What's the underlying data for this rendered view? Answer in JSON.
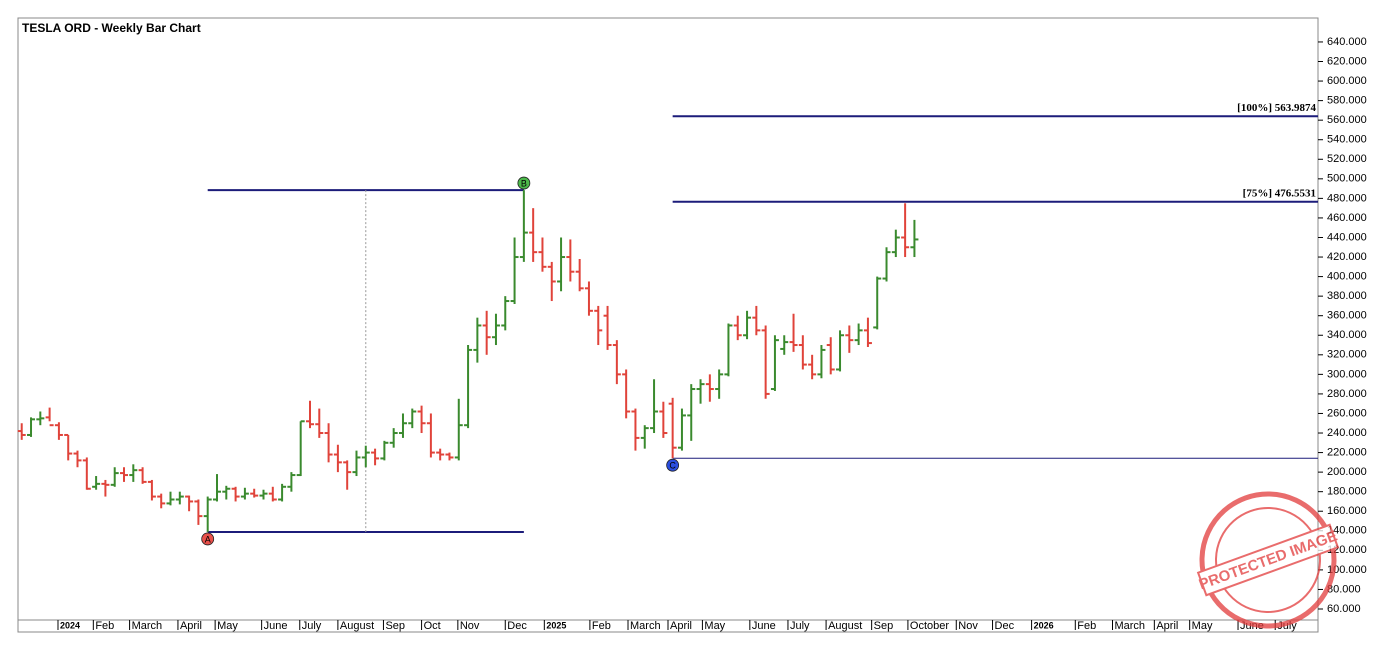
{
  "chart_data": {
    "type": "ohlc",
    "title": "TESLA ORD - Weekly Bar Chart",
    "open": [
      242,
      238,
      254,
      256,
      248,
      238,
      219,
      212,
      185,
      188,
      187,
      199,
      197,
      202,
      190,
      175,
      168,
      172,
      175,
      170,
      155,
      172,
      180,
      183,
      175,
      178,
      176,
      178,
      172,
      185,
      197,
      252,
      249,
      240,
      218,
      210,
      200,
      215,
      220,
      214,
      230,
      240,
      250,
      262,
      250,
      220,
      218,
      215,
      248,
      325,
      350,
      338,
      350,
      375,
      420,
      445,
      425,
      410,
      395,
      420,
      405,
      388,
      365,
      360,
      330,
      300,
      262,
      235,
      245,
      262,
      270,
      225,
      258,
      285,
      290,
      285,
      300,
      350,
      340,
      358,
      345,
      285,
      326,
      333,
      330,
      310,
      300,
      330,
      305,
      340,
      335,
      345,
      348,
      398,
      425,
      440,
      430
    ],
    "high": [
      250,
      256,
      262,
      266,
      251,
      238,
      222,
      215,
      196,
      192,
      205,
      205,
      208,
      205,
      192,
      178,
      180,
      180,
      176,
      172,
      175,
      198,
      186,
      185,
      184,
      183,
      182,
      185,
      188,
      200,
      252,
      273,
      265,
      250,
      228,
      212,
      222,
      227,
      224,
      232,
      245,
      260,
      265,
      268,
      260,
      224,
      220,
      275,
      330,
      358,
      365,
      362,
      380,
      440,
      488.5,
      470,
      440,
      415,
      440,
      438,
      418,
      395,
      370,
      370,
      335,
      305,
      265,
      248,
      295,
      272,
      276,
      265,
      290,
      295,
      300,
      305,
      352,
      360,
      365,
      370,
      350,
      340,
      340,
      362,
      340,
      320,
      330,
      338,
      345,
      350,
      352,
      358,
      400,
      430,
      448,
      475,
      458
    ],
    "low": [
      233,
      236,
      248,
      252,
      233,
      212,
      205,
      182,
      182,
      175,
      185,
      190,
      190,
      188,
      171,
      163,
      166,
      167,
      160,
      146,
      138.8,
      170,
      172,
      170,
      172,
      174,
      172,
      170,
      170,
      180,
      196,
      245,
      235,
      210,
      200,
      182,
      196,
      205,
      207,
      212,
      225,
      235,
      245,
      240,
      215,
      212,
      212,
      212,
      245,
      312,
      320,
      330,
      345,
      372,
      415,
      415,
      405,
      375,
      385,
      395,
      385,
      360,
      330,
      325,
      290,
      255,
      222,
      224,
      240,
      235,
      214.25,
      222,
      232,
      270,
      272,
      275,
      298,
      335,
      336,
      340,
      275,
      283,
      320,
      323,
      305,
      295,
      296,
      300,
      303,
      322,
      330,
      328,
      346,
      395,
      420,
      420,
      420
    ],
    "close": [
      238,
      254,
      255,
      248,
      238,
      219,
      212,
      183,
      188,
      187,
      199,
      197,
      202,
      190,
      175,
      168,
      172,
      175,
      170,
      155,
      172,
      180,
      183,
      175,
      178,
      176,
      178,
      172,
      185,
      197,
      252,
      249,
      240,
      218,
      210,
      200,
      215,
      220,
      214,
      230,
      240,
      250,
      262,
      250,
      220,
      218,
      215,
      248,
      325,
      350,
      338,
      350,
      375,
      420,
      445,
      425,
      410,
      395,
      420,
      405,
      388,
      365,
      345,
      330,
      300,
      262,
      235,
      245,
      262,
      240,
      225,
      258,
      285,
      290,
      285,
      300,
      350,
      340,
      358,
      345,
      280,
      335,
      333,
      330,
      310,
      300,
      325,
      305,
      340,
      335,
      345,
      332,
      398,
      425,
      440,
      430,
      438
    ],
    "up_color": "#3a8a2e",
    "down_color": "#e0433a",
    "flat_color": "#000000",
    "line_color": "#1c1c7a",
    "xlim": [
      -0.4,
      139.4
    ],
    "xticks": [
      {
        "value": 3.9,
        "label": "2024"
      },
      {
        "value": 7.7,
        "label": "Feb"
      },
      {
        "value": 11.6,
        "label": "March"
      },
      {
        "value": 16.8,
        "label": "April"
      },
      {
        "value": 20.8,
        "label": "May"
      },
      {
        "value": 25.8,
        "label": "June"
      },
      {
        "value": 29.9,
        "label": "July"
      },
      {
        "value": 34,
        "label": "August"
      },
      {
        "value": 38.9,
        "label": "Sep"
      },
      {
        "value": 43,
        "label": "Oct"
      },
      {
        "value": 46.9,
        "label": "Nov"
      },
      {
        "value": 52,
        "label": "Dec"
      },
      {
        "value": 56.2,
        "label": "2025"
      },
      {
        "value": 61.1,
        "label": "Feb"
      },
      {
        "value": 65.2,
        "label": "March"
      },
      {
        "value": 69.5,
        "label": "April"
      },
      {
        "value": 73.2,
        "label": "May"
      },
      {
        "value": 78.3,
        "label": "June"
      },
      {
        "value": 82.4,
        "label": "July"
      },
      {
        "value": 86.5,
        "label": "August"
      },
      {
        "value": 91.4,
        "label": "Sep"
      },
      {
        "value": 95.3,
        "label": "October"
      },
      {
        "value": 100.5,
        "label": "Nov"
      },
      {
        "value": 104.4,
        "label": "Dec"
      },
      {
        "value": 108.6,
        "label": "2026"
      },
      {
        "value": 113.3,
        "label": "Feb"
      },
      {
        "value": 117.3,
        "label": "March"
      },
      {
        "value": 121.8,
        "label": "April"
      },
      {
        "value": 125.6,
        "label": "May"
      },
      {
        "value": 130.8,
        "label": "June"
      },
      {
        "value": 134.8,
        "label": "July"
      }
    ],
    "ylim": [
      46.7,
      664.5
    ],
    "yticks": [
      {
        "value": 640,
        "label": "640.000"
      },
      {
        "value": 620,
        "label": "620.000"
      },
      {
        "value": 600,
        "label": "600.000"
      },
      {
        "value": 580,
        "label": "580.000"
      },
      {
        "value": 560,
        "label": "560.000"
      },
      {
        "value": 540,
        "label": "540.000"
      },
      {
        "value": 520,
        "label": "520.000"
      },
      {
        "value": 500,
        "label": "500.000"
      },
      {
        "value": 480,
        "label": "480.000"
      },
      {
        "value": 460,
        "label": "460.000"
      },
      {
        "value": 440,
        "label": "440.000"
      },
      {
        "value": 420,
        "label": "420.000"
      },
      {
        "value": 400,
        "label": "400.000"
      },
      {
        "value": 380,
        "label": "380.000"
      },
      {
        "value": 360,
        "label": "360.000"
      },
      {
        "value": 340,
        "label": "340.000"
      },
      {
        "value": 320,
        "label": "320.000"
      },
      {
        "value": 300,
        "label": "300.000"
      },
      {
        "value": 280,
        "label": "280.000"
      },
      {
        "value": 260,
        "label": "260.000"
      },
      {
        "value": 240,
        "label": "240.000"
      },
      {
        "value": 220,
        "label": "220.000"
      },
      {
        "value": 200,
        "label": "200.000"
      },
      {
        "value": 180,
        "label": "180.000"
      },
      {
        "value": 160,
        "label": "160.000"
      },
      {
        "value": 140,
        "label": "140.000"
      },
      {
        "value": 120,
        "label": "120.000"
      },
      {
        "value": 100,
        "label": "100.000"
      },
      {
        "value": 80,
        "label": "80.000"
      },
      {
        "value": 60,
        "label": "60.000"
      }
    ],
    "points": [
      {
        "label": "A",
        "x": 20,
        "value": 138.8,
        "color": "#e8504a"
      },
      {
        "label": "B",
        "x": 54,
        "value": 488.5,
        "color": "#4cb84a"
      },
      {
        "label": "C",
        "x": 70,
        "value": 214.25,
        "color": "#2a4ee0"
      }
    ],
    "levels": [
      {
        "value": 563.9874,
        "label": "[100%] 563.9874"
      },
      {
        "value": 476.5531,
        "label": "[75%] 476.5531"
      }
    ],
    "watermark": "PROTECTED IMAGE"
  }
}
